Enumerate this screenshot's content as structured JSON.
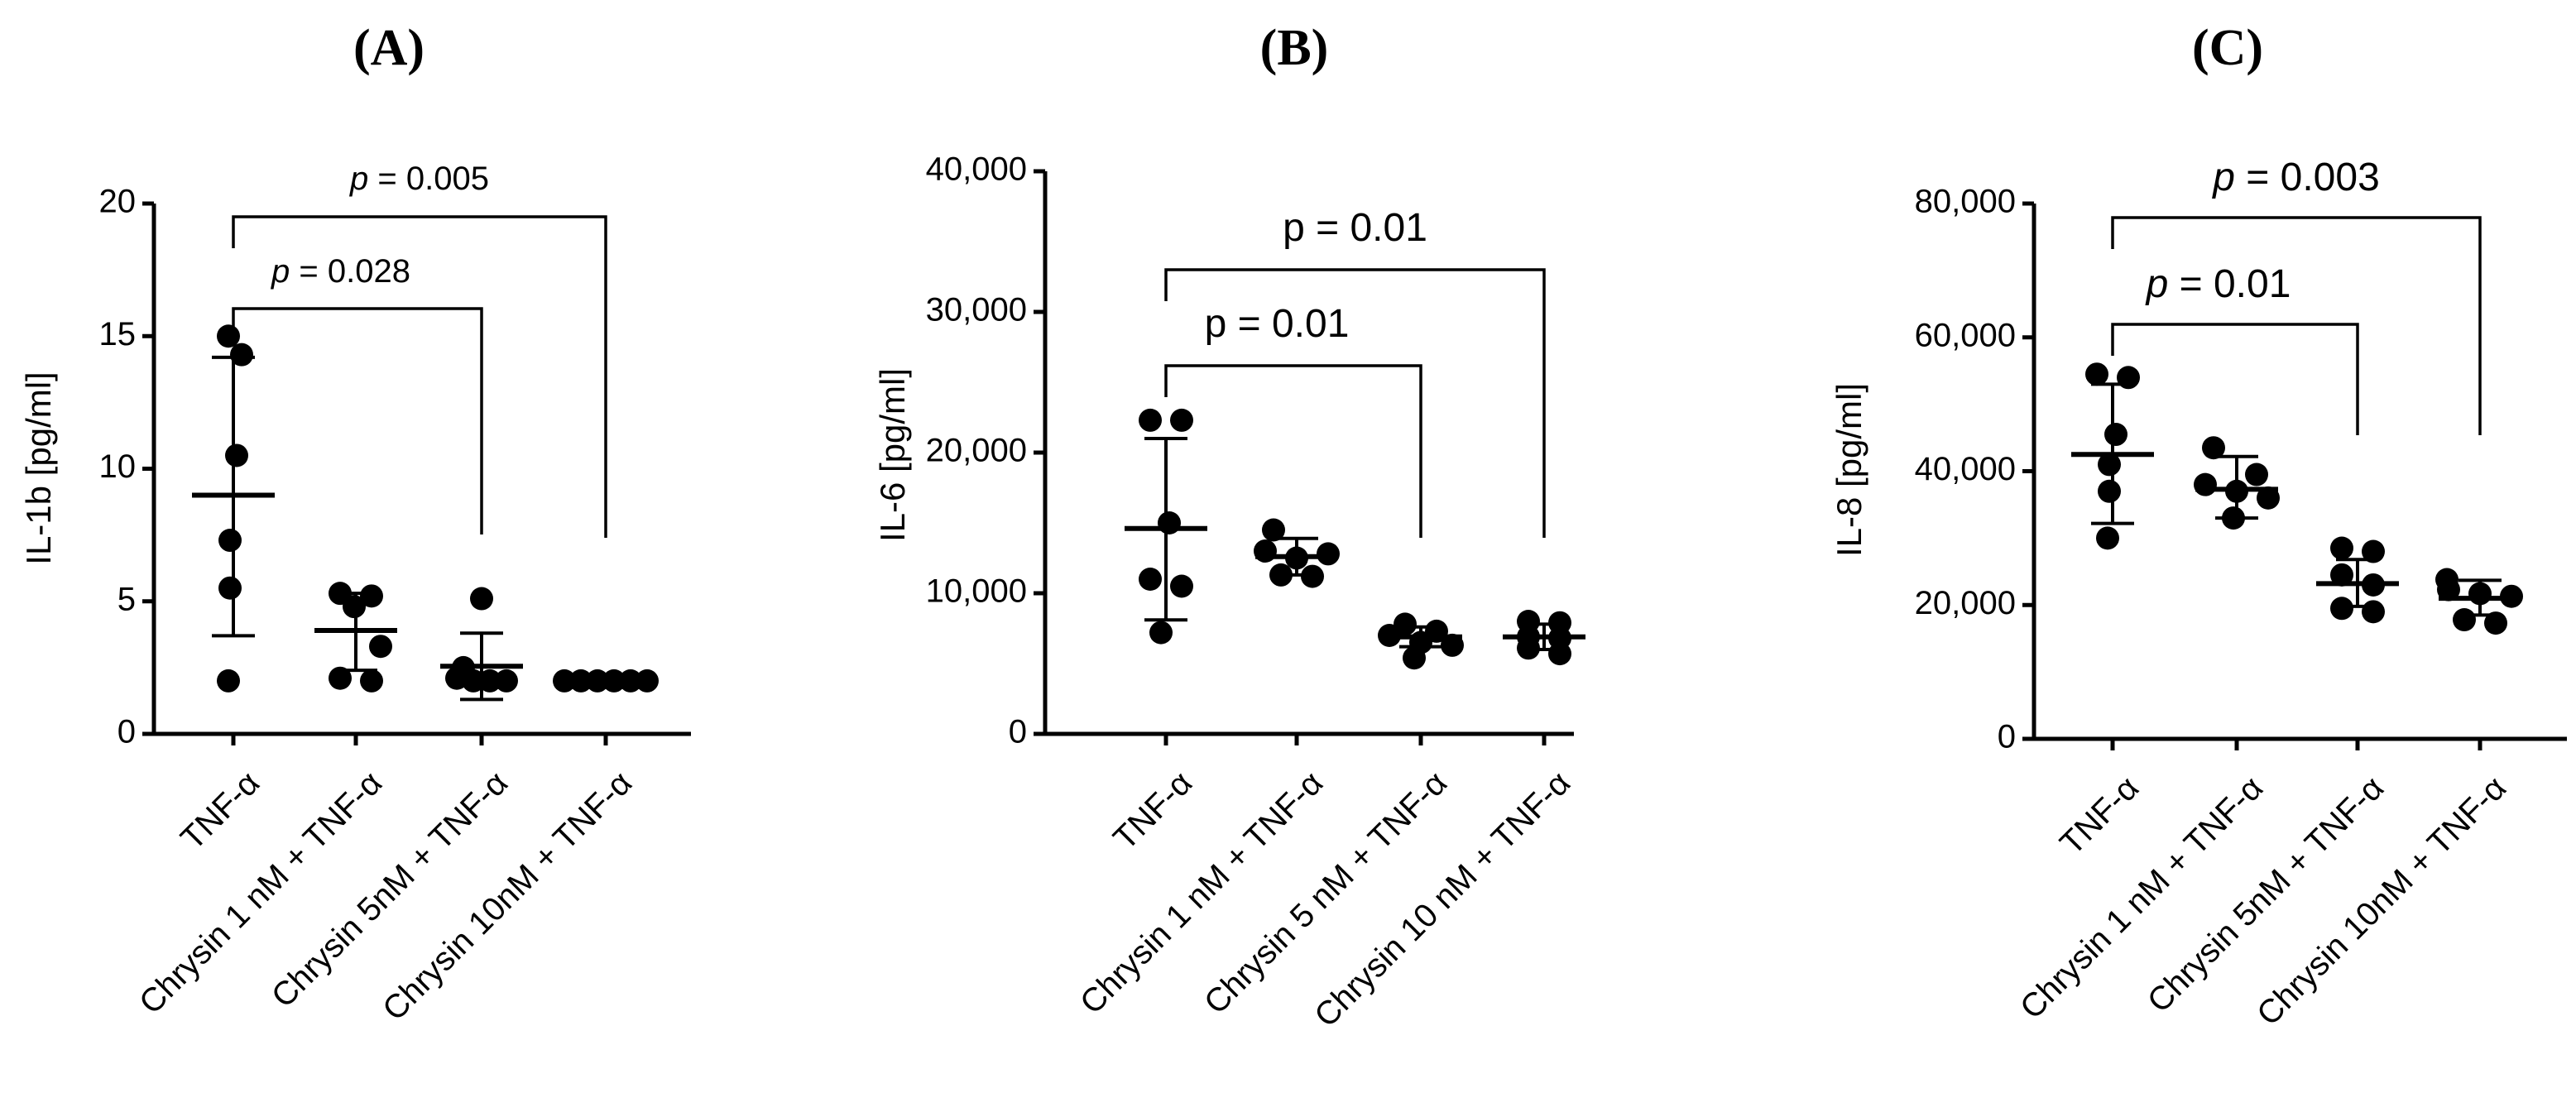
{
  "chart_data": [
    {
      "type": "scatter",
      "title": "(A)",
      "ylabel": "IL-1b [pg/ml]",
      "ylim": [
        0,
        20
      ],
      "yticks": [
        "0",
        "5",
        "10",
        "15",
        "20"
      ],
      "categories": [
        "TNF-α",
        "Chrysin 1 nM + TNF-α",
        "Chrysin 5nM + TNF-α",
        "Chrysin 10nM + TNF-α"
      ],
      "points": [
        [
          15.0,
          14.3,
          10.5,
          7.3,
          5.5,
          2.0
        ],
        [
          5.3,
          5.2,
          4.8,
          3.3,
          2.1,
          2.0
        ],
        [
          5.1,
          2.5,
          2.1,
          2.0,
          2.0,
          2.0
        ],
        [
          2.0,
          2.0,
          2.0,
          2.0,
          2.0,
          2.0
        ]
      ],
      "mean": [
        9.0,
        3.9,
        2.55,
        2.0
      ],
      "sd_low": [
        3.7,
        2.4,
        1.3,
        2.0
      ],
      "sd_high": [
        14.2,
        5.3,
        3.8,
        2.0
      ],
      "comparisons": [
        {
          "from": "TNF-α",
          "to": "Chrysin 5nM + TNF-α",
          "label_p": "p",
          "label_value": " = 0.028",
          "italic": true
        },
        {
          "from": "TNF-α",
          "to": "Chrysin 10nM + TNF-α",
          "label_p": "p",
          "label_value": " = 0.005",
          "italic": true
        }
      ]
    },
    {
      "type": "scatter",
      "title": "(B)",
      "ylabel": "IL-6 [pg/ml]",
      "ylim": [
        0,
        40000
      ],
      "yticks": [
        "0",
        "10,000",
        "20,000",
        "30,000",
        "40,000"
      ],
      "categories": [
        "TNF-α",
        "Chrysin 1 nM + TNF-α",
        "Chrysin 5 nM + TNF-α",
        "Chrysin 10 nM + TNF-α"
      ],
      "points": [
        [
          22300,
          22300,
          15000,
          11000,
          10500,
          7200
        ],
        [
          14500,
          13000,
          12500,
          12800,
          11300,
          11200
        ],
        [
          7800,
          7300,
          7000,
          6500,
          6300,
          5400
        ],
        [
          8000,
          7900,
          6900,
          6800,
          6100,
          5700
        ]
      ],
      "mean": [
        14600,
        12600,
        6900,
        6900
      ],
      "sd_low": [
        8100,
        11300,
        6200,
        6000
      ],
      "sd_high": [
        21000,
        13900,
        7600,
        7800
      ],
      "comparisons": [
        {
          "from": "TNF-α",
          "to": "Chrysin 5 nM + TNF-α",
          "label_p": "p",
          "label_value": " = 0.01",
          "italic": false
        },
        {
          "from": "TNF-α",
          "to": "Chrysin 10 nM + TNF-α",
          "label_p": "p",
          "label_value": " = 0.01",
          "italic": false
        }
      ]
    },
    {
      "type": "scatter",
      "title": "(C)",
      "ylabel": "IL-8 [pg/ml]",
      "ylim": [
        0,
        80000
      ],
      "yticks": [
        "0",
        "20,000",
        "40,000",
        "60,000",
        "80,000"
      ],
      "categories": [
        "TNF-α",
        "Chrysin 1 nM + TNF-α",
        "Chrysin 5nM + TNF-α",
        "Chrysin 10nM + TNF-α"
      ],
      "points": [
        [
          54500,
          54000,
          45500,
          41000,
          37000,
          30000
        ],
        [
          43500,
          39500,
          38000,
          37000,
          36000,
          33000
        ],
        [
          28500,
          28000,
          24500,
          23000,
          19500,
          19000
        ],
        [
          23800,
          22300,
          21700,
          21300,
          17800,
          17300
        ]
      ],
      "mean": [
        42500,
        37300,
        23200,
        21000
      ],
      "sd_low": [
        32200,
        33000,
        19800,
        18500
      ],
      "sd_high": [
        53000,
        42200,
        26800,
        23700
      ],
      "comparisons": [
        {
          "from": "TNF-α",
          "to": "Chrysin 5nM + TNF-α",
          "label_p": "p",
          "label_value": " = 0.01",
          "italic": true
        },
        {
          "from": "TNF-α",
          "to": "Chrysin 10nM + TNF-α",
          "label_p": "p",
          "label_value": " = 0.003",
          "italic": true
        }
      ]
    }
  ]
}
